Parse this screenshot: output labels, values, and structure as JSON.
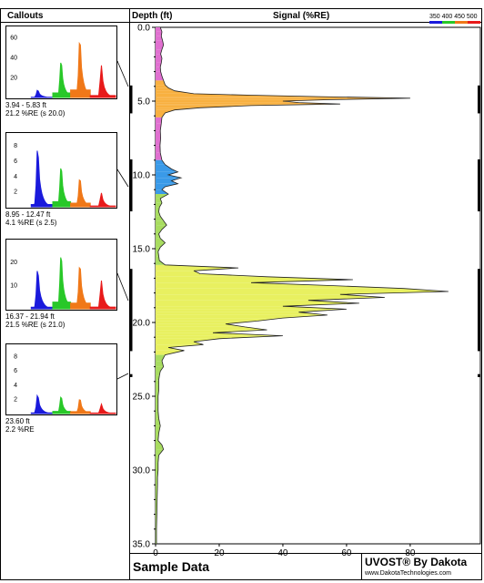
{
  "header": {
    "callouts_title": "Callouts",
    "depth_title": "Depth (ft)",
    "signal_title": "Signal (%RE)",
    "legend_label": "350 400 450 500"
  },
  "footer": {
    "sample_label": "Sample Data",
    "brand": "UVOST® By Dakota",
    "website": "www.DakotaTechnologies.com"
  },
  "colors": {
    "blue": "#1a1adc",
    "green": "#28c828",
    "orange": "#f07818",
    "red": "#e81a1a",
    "trace_orange": "#f8b040",
    "trace_blue": "#3a9ae8",
    "trace_lightgreen": "#a8dc60",
    "trace_yellow": "#e8f060",
    "trace_pink": "#e070d0"
  },
  "chart_data": [
    {
      "type": "area",
      "title": "Signal (%RE)",
      "ylabel": "Depth (ft)",
      "xlim": [
        0,
        100
      ],
      "ylim": [
        0,
        35
      ],
      "y_inverted": true,
      "x_ticks": [
        "0",
        "20",
        "40",
        "60",
        "80"
      ],
      "y_ticks": [
        "0.0",
        "5.0",
        "10.0",
        "15.0",
        "20.0",
        "25.0",
        "30.0",
        "35.0"
      ],
      "depth": [
        0.0,
        0.3,
        0.6,
        0.9,
        1.2,
        1.5,
        1.8,
        2.1,
        2.4,
        2.7,
        3.0,
        3.3,
        3.6,
        3.9,
        4.1,
        4.3,
        4.5,
        4.6,
        4.7,
        4.8,
        4.9,
        5.0,
        5.1,
        5.2,
        5.3,
        5.45,
        5.6,
        5.8,
        6.1,
        6.5,
        7.0,
        7.5,
        8.0,
        8.5,
        9.0,
        9.3,
        9.6,
        9.8,
        10.0,
        10.2,
        10.4,
        10.6,
        10.8,
        11.0,
        11.3,
        11.6,
        11.9,
        12.2,
        12.5,
        12.8,
        13.1,
        13.4,
        13.7,
        14.0,
        14.3,
        14.6,
        14.9,
        15.2,
        15.5,
        15.8,
        16.1,
        16.3,
        16.5,
        16.7,
        16.9,
        17.1,
        17.3,
        17.5,
        17.7,
        17.9,
        18.1,
        18.3,
        18.5,
        18.7,
        18.9,
        19.1,
        19.3,
        19.5,
        19.7,
        19.9,
        20.1,
        20.3,
        20.5,
        20.7,
        20.9,
        21.1,
        21.3,
        21.5,
        21.7,
        21.9,
        22.2,
        22.6,
        23.0,
        23.3,
        23.6,
        23.9,
        24.2,
        24.6,
        25.0,
        25.5,
        26.0,
        26.5,
        27.0,
        27.5,
        28.0,
        28.3,
        28.6,
        29.0,
        29.5,
        30.0,
        30.5,
        31.0,
        32.0,
        33.0,
        34.0,
        35.0
      ],
      "signal": [
        1.5,
        2.0,
        1.8,
        2.2,
        2.5,
        2.0,
        1.6,
        2.0,
        1.8,
        1.5,
        1.6,
        2.0,
        2.5,
        3.0,
        4.0,
        6.0,
        12.0,
        30.0,
        52.0,
        80.0,
        55.0,
        40.0,
        45.0,
        58.0,
        30.0,
        14.0,
        6.0,
        3.0,
        2.0,
        1.8,
        1.5,
        1.6,
        1.4,
        1.5,
        2.0,
        3.0,
        5.0,
        7.0,
        4.0,
        8.0,
        5.0,
        7.0,
        3.0,
        2.0,
        4.0,
        1.5,
        2.0,
        1.2,
        1.0,
        1.5,
        2.5,
        3.5,
        2.0,
        1.0,
        1.5,
        3.0,
        1.5,
        0.8,
        1.0,
        1.2,
        3.0,
        26.0,
        12.0,
        14.0,
        35.0,
        62.0,
        30.0,
        55.0,
        78.0,
        92.0,
        58.0,
        72.0,
        48.0,
        64.0,
        40.0,
        60.0,
        45.0,
        54.0,
        40.0,
        32.0,
        22.0,
        28.0,
        35.0,
        18.0,
        40.0,
        20.0,
        12.0,
        15.0,
        4.0,
        9.0,
        3.0,
        2.0,
        2.5,
        1.5,
        1.2,
        1.0,
        1.0,
        1.0,
        0.8,
        0.8,
        0.8,
        1.0,
        1.5,
        1.0,
        0.8,
        2.0,
        2.5,
        1.0,
        0.8,
        0.8,
        0.6,
        0.6,
        0.5,
        0.4,
        0.3,
        0.3
      ]
    },
    {
      "type": "area",
      "label_depth": "3.94 - 5.83 ft",
      "label_signal": "21.2 %RE (s 20.0)",
      "ylim": [
        0,
        70
      ],
      "y_ticks": [
        "20",
        "40",
        "60"
      ],
      "peaks": [
        8,
        38,
        62,
        32
      ]
    },
    {
      "type": "area",
      "label_depth": "8.95 - 12.47 ft",
      "label_signal": "4.1 %RE (s 2.5)",
      "ylim": [
        0,
        9.5
      ],
      "y_ticks": [
        "2",
        "4",
        "6",
        "8"
      ],
      "peaks": [
        8.2,
        5.5,
        4.0,
        1.8
      ]
    },
    {
      "type": "area",
      "label_depth": "16.37 - 21.94 ft",
      "label_signal": "21.5 %RE (s 21.0)",
      "ylim": [
        0,
        29
      ],
      "y_ticks": [
        "10",
        "20"
      ],
      "peaks": [
        18,
        24,
        20,
        12
      ]
    },
    {
      "type": "area",
      "label_depth": "23.60 ft",
      "label_signal": "2.2 %RE",
      "ylim": [
        0,
        9.5
      ],
      "y_ticks": [
        "2",
        "4",
        "6",
        "8"
      ],
      "peaks": [
        2.8,
        2.5,
        2.2,
        1.3
      ]
    }
  ]
}
